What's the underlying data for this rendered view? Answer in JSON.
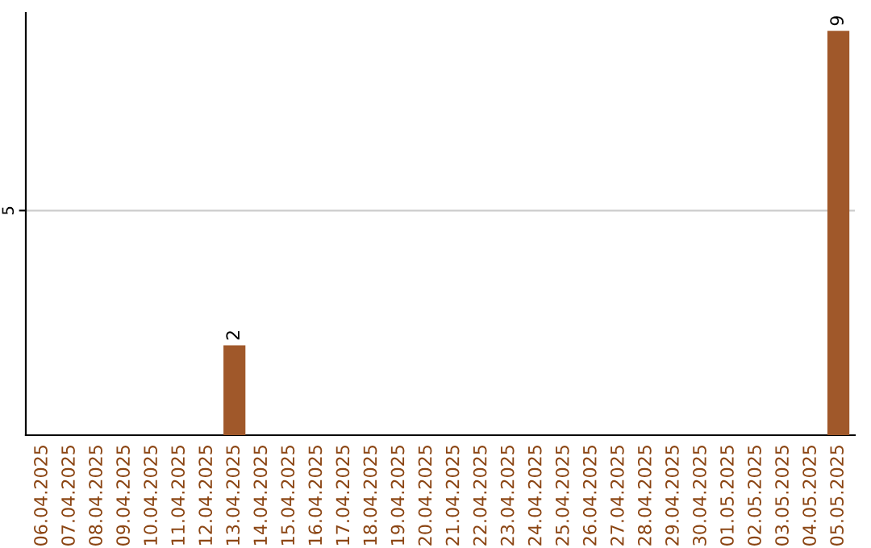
{
  "chart_data": {
    "type": "bar",
    "categories": [
      "06.04.2025",
      "07.04.2025",
      "08.04.2025",
      "09.04.2025",
      "10.04.2025",
      "11.04.2025",
      "12.04.2025",
      "13.04.2025",
      "14.04.2025",
      "15.04.2025",
      "16.04.2025",
      "17.04.2025",
      "18.04.2025",
      "19.04.2025",
      "20.04.2025",
      "21.04.2025",
      "22.04.2025",
      "23.04.2025",
      "24.04.2025",
      "25.04.2025",
      "26.04.2025",
      "27.04.2025",
      "28.04.2025",
      "29.04.2025",
      "30.04.2025",
      "01.05.2025",
      "02.05.2025",
      "03.05.2025",
      "04.05.2025",
      "05.05.2025"
    ],
    "values": [
      0,
      0,
      0,
      0,
      0,
      0,
      0,
      2,
      0,
      0,
      0,
      0,
      0,
      0,
      0,
      0,
      0,
      0,
      0,
      0,
      0,
      0,
      0,
      0,
      0,
      0,
      0,
      0,
      0,
      9
    ],
    "value_labels": [
      null,
      null,
      null,
      null,
      null,
      null,
      null,
      "2",
      null,
      null,
      null,
      null,
      null,
      null,
      null,
      null,
      null,
      null,
      null,
      null,
      null,
      null,
      null,
      null,
      null,
      null,
      null,
      null,
      null,
      "9"
    ],
    "color": "#a0582a",
    "ylim": [
      0,
      9.4
    ],
    "yticks": [
      5
    ],
    "grid": "y"
  }
}
